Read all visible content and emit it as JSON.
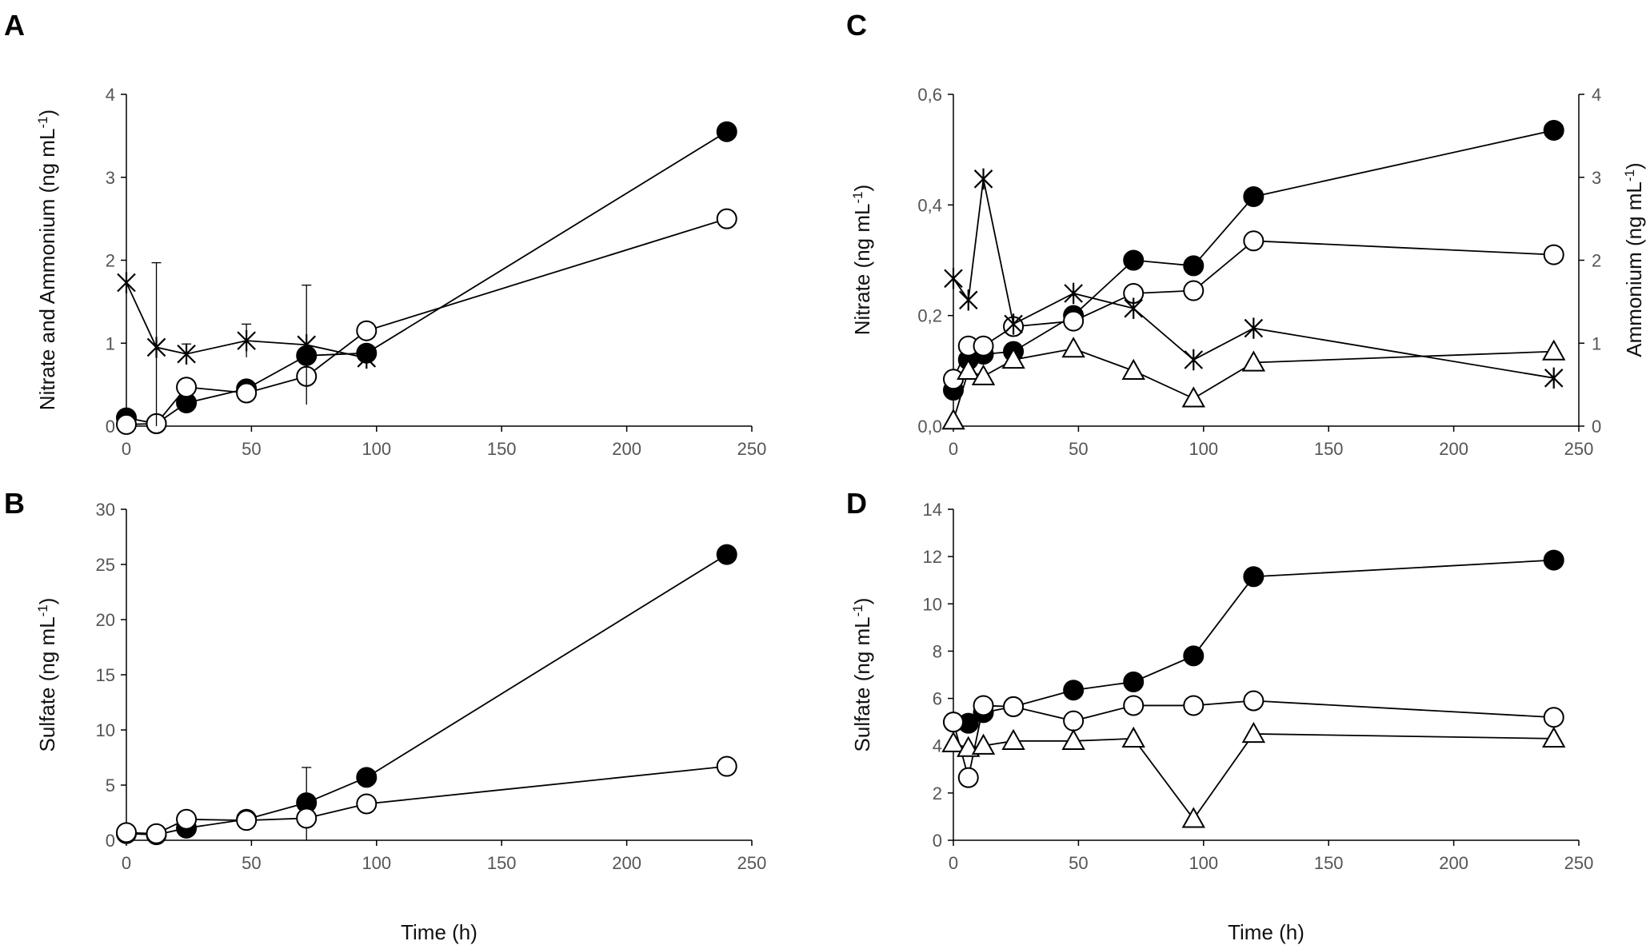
{
  "chart_data": [
    {
      "panel": "A",
      "type": "line",
      "xlabel": "",
      "ylabel": "Nitrate and Ammonium (ng mL-1)",
      "xlim": [
        0,
        250
      ],
      "ylim": [
        0,
        4
      ],
      "xticks": [
        0,
        50,
        100,
        150,
        200,
        250
      ],
      "yticks": [
        0,
        1,
        2,
        3,
        4
      ],
      "series": [
        {
          "name": "filled circle",
          "marker": "circle-filled",
          "x": [
            0,
            12,
            24,
            48,
            72,
            96,
            240
          ],
          "y": [
            0.1,
            0.03,
            0.28,
            0.45,
            0.85,
            0.88,
            3.55
          ]
        },
        {
          "name": "open circle",
          "marker": "circle-open",
          "x": [
            0,
            12,
            24,
            48,
            72,
            96,
            240
          ],
          "y": [
            0.02,
            0.03,
            0.47,
            0.4,
            0.6,
            1.15,
            2.5
          ]
        },
        {
          "name": "asterisk",
          "marker": "asterisk",
          "x": [
            0,
            12,
            24,
            48,
            72,
            96
          ],
          "y": [
            1.73,
            0.95,
            0.87,
            1.03,
            0.98,
            0.82
          ],
          "err": [
            0,
            1.02,
            0.12,
            0.2,
            0.72,
            0.1
          ]
        }
      ]
    },
    {
      "panel": "B",
      "type": "line",
      "xlabel": "Time (h)",
      "ylabel": "Sulfate (ng mL-1)",
      "xlim": [
        0,
        250
      ],
      "ylim": [
        0,
        30
      ],
      "xticks": [
        0,
        50,
        100,
        150,
        200,
        250
      ],
      "yticks": [
        0,
        5,
        10,
        15,
        20,
        25,
        30
      ],
      "series": [
        {
          "name": "filled circle",
          "marker": "circle-filled",
          "x": [
            0,
            12,
            24,
            48,
            72,
            96,
            240
          ],
          "y": [
            0.6,
            0.5,
            1.1,
            1.9,
            3.4,
            5.7,
            25.9
          ]
        },
        {
          "name": "open circle",
          "marker": "circle-open",
          "x": [
            0,
            12,
            24,
            48,
            72,
            96,
            240
          ],
          "y": [
            0.7,
            0.6,
            1.9,
            1.8,
            2.0,
            3.3,
            6.7
          ],
          "err": [
            0,
            0,
            0,
            0,
            4.6,
            0,
            0
          ]
        }
      ]
    },
    {
      "panel": "C",
      "type": "line",
      "xlabel": "",
      "ylabel": "Nitrate (ng mL-1)",
      "y2label": "Ammonium (ng mL-1)",
      "xlim": [
        0,
        250
      ],
      "ylim": [
        0,
        0.6
      ],
      "y2lim": [
        0,
        4
      ],
      "xticks": [
        0,
        50,
        100,
        150,
        200,
        250
      ],
      "yticks": [
        "0,0",
        "0,2",
        "0,4",
        "0,6"
      ],
      "y2ticks": [
        0,
        1,
        2,
        3,
        4
      ],
      "series": [
        {
          "name": "filled circle",
          "marker": "circle-filled",
          "axis": "left",
          "x": [
            0,
            6,
            12,
            24,
            48,
            72,
            96,
            120,
            240
          ],
          "y": [
            0.065,
            0.12,
            0.13,
            0.135,
            0.2,
            0.3,
            0.29,
            0.415,
            0.535
          ]
        },
        {
          "name": "open circle",
          "marker": "circle-open",
          "axis": "left",
          "x": [
            0,
            6,
            12,
            24,
            48,
            72,
            96,
            120,
            240
          ],
          "y": [
            0.085,
            0.145,
            0.145,
            0.18,
            0.19,
            0.24,
            0.245,
            0.335,
            0.31
          ]
        },
        {
          "name": "triangle",
          "marker": "triangle-open",
          "axis": "left",
          "x": [
            0,
            6,
            12,
            24,
            48,
            72,
            96,
            120,
            240
          ],
          "y": [
            0.01,
            0.1,
            0.09,
            0.12,
            0.14,
            0.1,
            0.05,
            0.115,
            0.135
          ]
        },
        {
          "name": "asterisk",
          "marker": "asterisk",
          "axis": "right",
          "x": [
            0,
            6,
            12,
            24,
            48,
            72,
            96,
            120,
            240
          ],
          "y": [
            1.78,
            1.52,
            2.98,
            1.23,
            1.6,
            1.42,
            0.8,
            1.18,
            0.58
          ]
        }
      ]
    },
    {
      "panel": "D",
      "type": "line",
      "xlabel": "Time (h)",
      "ylabel": "Sulfate (ng mL-1)",
      "xlim": [
        0,
        250
      ],
      "ylim": [
        0,
        14
      ],
      "xticks": [
        0,
        50,
        100,
        150,
        200,
        250
      ],
      "yticks": [
        0,
        2,
        4,
        6,
        8,
        10,
        12,
        14
      ],
      "series": [
        {
          "name": "filled circle",
          "marker": "circle-filled",
          "x": [
            0,
            6,
            12,
            24,
            48,
            72,
            96,
            120,
            240
          ],
          "y": [
            5.0,
            4.95,
            5.4,
            5.65,
            6.35,
            6.7,
            7.8,
            11.15,
            11.85
          ]
        },
        {
          "name": "open circle",
          "marker": "circle-open",
          "x": [
            0,
            6,
            12,
            24,
            48,
            72,
            96,
            120,
            240
          ],
          "y": [
            5.0,
            2.65,
            5.7,
            5.65,
            5.05,
            5.7,
            5.7,
            5.9,
            5.2
          ]
        },
        {
          "name": "triangle",
          "marker": "triangle-open",
          "x": [
            0,
            6,
            12,
            24,
            48,
            72,
            96,
            120,
            240
          ],
          "y": [
            4.1,
            3.9,
            4.0,
            4.2,
            4.2,
            4.3,
            0.9,
            4.5,
            4.3
          ]
        }
      ]
    }
  ]
}
